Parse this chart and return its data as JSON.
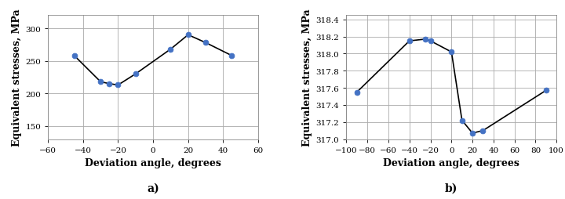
{
  "chart_a": {
    "x": [
      -45,
      -30,
      -25,
      -20,
      -10,
      10,
      20,
      30,
      45
    ],
    "y": [
      258,
      218,
      215,
      213,
      230,
      268,
      290,
      278,
      258
    ],
    "xlabel": "Deviation angle, degrees",
    "ylabel": "Equivalent stresses, MPa",
    "label": "a)",
    "xlim": [
      -60,
      60
    ],
    "ylim": [
      130,
      320
    ],
    "xticks": [
      -60,
      -40,
      -20,
      0,
      20,
      40,
      60
    ],
    "yticks": [
      150,
      200,
      250,
      300
    ]
  },
  "chart_b": {
    "x": [
      -90,
      -40,
      -25,
      -20,
      0,
      10,
      20,
      30,
      90
    ],
    "y": [
      317.55,
      318.15,
      318.17,
      318.15,
      318.02,
      317.22,
      317.07,
      317.1,
      317.57
    ],
    "xlabel": "Deviation angle, degrees",
    "ylabel": "Equivalent stresses, MPa",
    "label": "b)",
    "xlim": [
      -100,
      100
    ],
    "ylim": [
      317.0,
      318.45
    ],
    "xticks": [
      -100,
      -80,
      -60,
      -40,
      -20,
      0,
      20,
      40,
      60,
      80,
      100
    ],
    "yticks": [
      317.0,
      317.2,
      317.4,
      317.6,
      317.8,
      318.0,
      318.2,
      318.4
    ]
  },
  "line_color": "#000000",
  "marker_color": "#4472C4",
  "marker_style": "o",
  "marker_size": 5,
  "line_width": 1.2,
  "grid_color": "#aaaaaa",
  "background_color": "#ffffff",
  "tick_fontsize": 7.5,
  "axis_label_fontsize": 9,
  "sublabel_fontsize": 10,
  "font_family": "Times New Roman"
}
